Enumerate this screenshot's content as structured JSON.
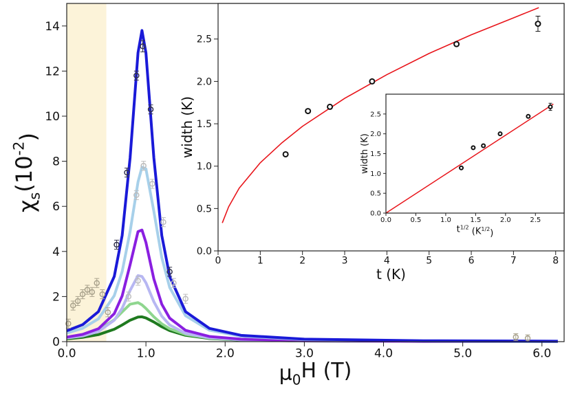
{
  "chart_data": [
    {
      "type": "line",
      "xlabel": [
        {
          "text": "μ"
        },
        {
          "text": "0",
          "script": "sub"
        },
        {
          "text": "H (T)"
        }
      ],
      "ylabel": [
        {
          "text": "χ"
        },
        {
          "text": "s",
          "script": "sub"
        },
        {
          "text": "(10"
        },
        {
          "text": "-2",
          "script": "sup"
        },
        {
          "text": ")"
        }
      ],
      "xlim": [
        0,
        6.28
      ],
      "ylim": [
        0,
        15
      ],
      "xticks": [
        {
          "value": 0,
          "label": "0.0"
        },
        {
          "value": 1,
          "label": "1.0"
        },
        {
          "value": 2,
          "label": "2.0"
        },
        {
          "value": 3,
          "label": "3.0"
        },
        {
          "value": 4,
          "label": "4.0"
        },
        {
          "value": 5,
          "label": "5.0"
        },
        {
          "value": 6,
          "label": "6.0"
        }
      ],
      "yticks": [
        0,
        2,
        4,
        6,
        8,
        10,
        12,
        14
      ],
      "highlight_x": [
        0,
        0.5
      ],
      "highlight_color": "#fcf3d9",
      "x": [
        0,
        0.2,
        0.4,
        0.6,
        0.7,
        0.8,
        0.9,
        0.95,
        1.0,
        1.1,
        1.2,
        1.3,
        1.5,
        1.8,
        2.2,
        3.0,
        4.5,
        6.2
      ],
      "series": [
        {
          "color": "#1f7a1f",
          "values": [
            0.12,
            0.19,
            0.31,
            0.55,
            0.74,
            0.95,
            1.09,
            1.1,
            1.05,
            0.87,
            0.66,
            0.49,
            0.28,
            0.14,
            0.07,
            0.03,
            0.01,
            0
          ]
        },
        {
          "color": "#8fd68f",
          "values": [
            0.19,
            0.29,
            0.51,
            0.97,
            1.32,
            1.66,
            1.73,
            1.63,
            1.47,
            1.1,
            0.79,
            0.57,
            0.32,
            0.16,
            0.08,
            0.03,
            0.01,
            0.01
          ]
        },
        {
          "color": "#b7b7f2",
          "values": [
            0.16,
            0.25,
            0.45,
            0.95,
            1.48,
            2.27,
            2.93,
            2.89,
            2.61,
            1.77,
            1.13,
            0.74,
            0.37,
            0.17,
            0.08,
            0.03,
            0.01,
            0.01
          ]
        },
        {
          "color": "#8a1fe0",
          "values": [
            0.2,
            0.32,
            0.57,
            1.24,
            2.03,
            3.41,
            4.88,
            4.95,
            4.4,
            2.78,
            1.66,
            1.04,
            0.5,
            0.23,
            0.11,
            0.04,
            0.01,
            0.01
          ]
        },
        {
          "color": "#a7d0ea",
          "values": [
            0.38,
            0.59,
            1.01,
            2.04,
            3.11,
            4.88,
            7.08,
            7.74,
            7.66,
            5.78,
            3.73,
            2.4,
            1.15,
            0.51,
            0.24,
            0.09,
            0.03,
            0.01
          ]
        },
        {
          "color": "#1a1ad8",
          "values": [
            0.48,
            0.75,
            1.33,
            2.89,
            4.71,
            8.15,
            12.81,
            13.8,
            12.81,
            8.15,
            4.71,
            2.89,
            1.33,
            0.59,
            0.28,
            0.11,
            0.04,
            0.02
          ]
        }
      ],
      "points": [
        {
          "color": "#a9a28c",
          "x": [
            0.02,
            0.08,
            0.14,
            0.2,
            0.26,
            0.32,
            0.38,
            0.45,
            0.52,
            5.67,
            5.82
          ],
          "values": [
            0.8,
            1.6,
            1.8,
            2.1,
            2.3,
            2.2,
            2.6,
            2.1,
            1.3,
            0.2,
            0.15
          ],
          "errors": [
            0.2,
            0.2,
            0.2,
            0.2,
            0.2,
            0.2,
            0.2,
            0.2,
            0.2,
            0.15,
            0.15
          ]
        },
        {
          "color": "#bdbdbd",
          "x": [
            0.78,
            0.88,
            0.9,
            0.97,
            1.08,
            1.22,
            1.35,
            1.5
          ],
          "values": [
            2.0,
            6.5,
            2.7,
            7.8,
            7.0,
            5.3,
            2.6,
            1.9
          ],
          "errors": [
            0.2,
            0.2,
            0.2,
            0.2,
            0.2,
            0.2,
            0.2,
            0.2
          ]
        },
        {
          "color": "#33334d",
          "x": [
            0.63,
            0.76,
            0.88,
            0.96,
            1.06,
            1.3
          ],
          "values": [
            4.3,
            7.5,
            11.8,
            13.1,
            10.3,
            3.1
          ],
          "errors": [
            0.2,
            0.2,
            0.2,
            0.25,
            0.2,
            0.2
          ]
        }
      ]
    },
    {
      "type": "scatter",
      "xlabel": [
        {
          "text": "t (K)"
        }
      ],
      "ylabel": [
        {
          "text": "width (K)"
        }
      ],
      "xlim": [
        0,
        8.2
      ],
      "ylim": [
        0,
        2.92
      ],
      "xticks": [
        0,
        1,
        2,
        3,
        4,
        5,
        6,
        7,
        8
      ],
      "yticks": [
        {
          "value": 0,
          "label": "0.0"
        },
        {
          "value": 0.5,
          "label": "0.5"
        },
        {
          "value": 1,
          "label": "1.0"
        },
        {
          "value": 1.5,
          "label": "1.5"
        },
        {
          "value": 2,
          "label": "2.0"
        },
        {
          "value": 2.5,
          "label": "2.5"
        }
      ],
      "x": [
        0.1,
        0.25,
        0.5,
        1,
        1.5,
        2,
        3,
        4,
        5,
        6,
        7,
        7.6
      ],
      "series": [
        {
          "color": "#e8141a",
          "values": [
            0.33,
            0.52,
            0.74,
            1.04,
            1.27,
            1.47,
            1.8,
            2.08,
            2.33,
            2.55,
            2.75,
            2.87
          ]
        }
      ],
      "points": [
        {
          "color": "#111111",
          "x": [
            1.6,
            2.13,
            2.65,
            3.65,
            5.65,
            7.58
          ],
          "values": [
            1.14,
            1.65,
            1.7,
            2.0,
            2.44,
            2.68
          ],
          "errors": [
            0.02,
            0.02,
            0.02,
            0.02,
            0.02,
            0.09
          ]
        }
      ]
    },
    {
      "type": "scatter",
      "xlabel": [
        {
          "text": "t"
        },
        {
          "text": "1/2",
          "script": "sup"
        },
        {
          "text": " (K"
        },
        {
          "text": "1/2",
          "script": "sup"
        },
        {
          "text": ")"
        }
      ],
      "ylabel": [
        {
          "text": "width (K)"
        }
      ],
      "xlim": [
        0,
        2.98
      ],
      "ylim": [
        0,
        3.0
      ],
      "xticks": [
        {
          "value": 0,
          "label": "0.0"
        },
        {
          "value": 0.5,
          "label": "0.5"
        },
        {
          "value": 1,
          "label": "1.0"
        },
        {
          "value": 1.5,
          "label": "1.5"
        },
        {
          "value": 2,
          "label": "2.0"
        },
        {
          "value": 2.5,
          "label": "2.5"
        }
      ],
      "yticks": [
        {
          "value": 0,
          "label": "0.0"
        },
        {
          "value": 0.5,
          "label": "0.5"
        },
        {
          "value": 1,
          "label": "1.0"
        },
        {
          "value": 1.5,
          "label": "1.5"
        },
        {
          "value": 2,
          "label": "2.0"
        },
        {
          "value": 2.5,
          "label": "2.5"
        }
      ],
      "x": [
        0,
        2.8
      ],
      "series": [
        {
          "color": "#e8141a",
          "values": [
            0,
            2.75
          ]
        }
      ],
      "points": [
        {
          "color": "#111111",
          "x": [
            1.26,
            1.46,
            1.63,
            1.91,
            2.38,
            2.75
          ],
          "values": [
            1.14,
            1.65,
            1.7,
            2.0,
            2.44,
            2.68
          ],
          "errors": [
            0.02,
            0.02,
            0.02,
            0.02,
            0.02,
            0.09
          ]
        }
      ]
    }
  ]
}
